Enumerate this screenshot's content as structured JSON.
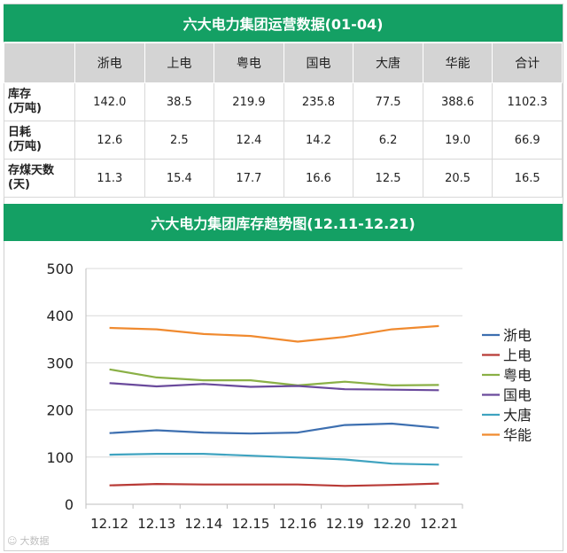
{
  "top_title": "六大电力集团运营数据(01-04)",
  "table": {
    "columns": [
      "浙电",
      "上电",
      "粤电",
      "国电",
      "大唐",
      "华能",
      "合计"
    ],
    "rows": [
      {
        "label": "库存",
        "unit": "(万吨)",
        "values": [
          "142.0",
          "38.5",
          "219.9",
          "235.8",
          "77.5",
          "388.6",
          "1102.3"
        ]
      },
      {
        "label": "日耗",
        "unit": "(万吨)",
        "values": [
          "12.6",
          "2.5",
          "12.4",
          "14.2",
          "6.2",
          "19.0",
          "66.9"
        ]
      },
      {
        "label": "存煤天数",
        "unit": "(天)",
        "values": [
          "11.3",
          "15.4",
          "17.7",
          "16.6",
          "12.5",
          "20.5",
          "16.5"
        ]
      }
    ]
  },
  "chart_title": "六大电力集团库存趋势图(12.11-12.21)",
  "chart_data": {
    "type": "line",
    "title": "六大电力集团库存趋势图(12.11-12.21)",
    "categories": [
      "12.12",
      "12.13",
      "12.14",
      "12.15",
      "12.16",
      "12.19",
      "12.20",
      "12.21"
    ],
    "ylim": [
      0,
      500
    ],
    "yticks": [
      0,
      100,
      200,
      300,
      400,
      500
    ],
    "grid": true,
    "legend_position": "right",
    "series": [
      {
        "name": "浙电",
        "color": "#3d6fb0",
        "values": [
          151,
          157,
          152,
          150,
          152,
          168,
          171,
          162
        ]
      },
      {
        "name": "上电",
        "color": "#b83a36",
        "values": [
          40,
          43,
          42,
          42,
          42,
          39,
          41,
          44
        ]
      },
      {
        "name": "粤电",
        "color": "#8ab046",
        "values": [
          286,
          269,
          263,
          263,
          252,
          260,
          252,
          253
        ]
      },
      {
        "name": "国电",
        "color": "#6a4a9c",
        "values": [
          257,
          250,
          255,
          249,
          251,
          244,
          243,
          242
        ]
      },
      {
        "name": "大唐",
        "color": "#3fa3c0",
        "values": [
          105,
          107,
          107,
          103,
          99,
          95,
          86,
          84
        ]
      },
      {
        "name": "华能",
        "color": "#f08a2f",
        "values": [
          374,
          371,
          361,
          357,
          345,
          355,
          371,
          378
        ]
      }
    ]
  },
  "watermark": "大数据"
}
